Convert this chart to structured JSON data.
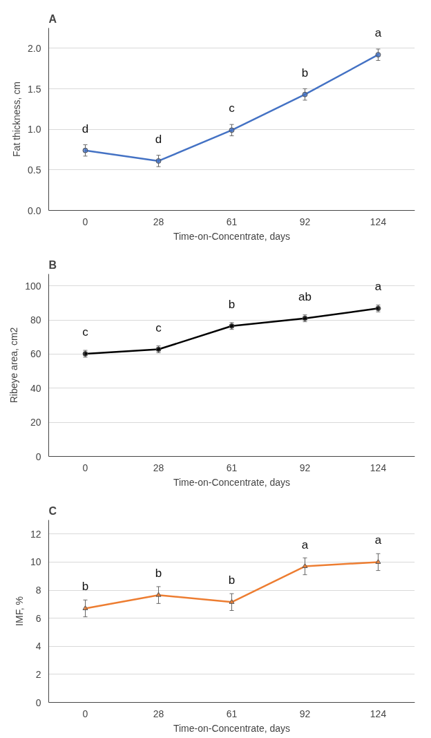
{
  "chart_data": [
    {
      "type": "line",
      "title": "A",
      "xlabel": "Time-on-Concentrate, days",
      "ylabel": "Fat thickness, cm",
      "categories": [
        "0",
        "28",
        "61",
        "92",
        "124"
      ],
      "values": [
        0.74,
        0.61,
        0.99,
        1.43,
        1.92
      ],
      "errors": [
        0.07,
        0.07,
        0.07,
        0.07,
        0.07
      ],
      "color": "#4472c4",
      "marker": "circle",
      "line_style": "solid",
      "grid": "y",
      "ylim": [
        0,
        2.25
      ],
      "yticks": [
        {
          "value": 0,
          "label": "0.0"
        },
        {
          "value": 0.5,
          "label": "0.5"
        },
        {
          "value": 1.0,
          "label": "1.0"
        },
        {
          "value": 1.5,
          "label": "1.5"
        },
        {
          "value": 2.0,
          "label": "2.0"
        }
      ],
      "annotations": [
        {
          "text": "d",
          "x": "0",
          "y": 0.74
        },
        {
          "text": "d",
          "x": "28",
          "y": 0.61
        },
        {
          "text": "c",
          "x": "61",
          "y": 0.99
        },
        {
          "text": "b",
          "x": "92",
          "y": 1.43
        },
        {
          "text": "a",
          "x": "124",
          "y": 1.92
        }
      ]
    },
    {
      "type": "line",
      "title": "B",
      "xlabel": "Time-on-Concentrate, days",
      "ylabel": "Ribeye area, cm2",
      "categories": [
        "0",
        "28",
        "61",
        "92",
        "124"
      ],
      "values": [
        60.2,
        62.8,
        76.5,
        81,
        86.8
      ],
      "errors": [
        2,
        2,
        2,
        2,
        2
      ],
      "color": "#000000",
      "marker": "circle",
      "line_style": "solid",
      "grid": "y",
      "ylim": [
        0,
        107
      ],
      "yticks": [
        0,
        20,
        40,
        60,
        80,
        100
      ],
      "annotations": [
        {
          "text": "c",
          "x": "0",
          "y": 60.2
        },
        {
          "text": "c",
          "x": "28",
          "y": 62.8
        },
        {
          "text": "b",
          "x": "61",
          "y": 76.5
        },
        {
          "text": "ab",
          "x": "92",
          "y": 81
        },
        {
          "text": "a",
          "x": "124",
          "y": 86.8
        }
      ]
    },
    {
      "type": "line",
      "title": "C",
      "xlabel": "Time-on-Concentrate, days",
      "ylabel": "IMF, %",
      "categories": [
        "0",
        "28",
        "61",
        "92",
        "124"
      ],
      "values": [
        6.7,
        7.65,
        7.15,
        9.7,
        10.0
      ],
      "errors": [
        0.6,
        0.6,
        0.6,
        0.6,
        0.6
      ],
      "color": "#ed7d31",
      "marker": "triangle",
      "line_style": "solid",
      "grid": "y",
      "ylim": [
        0,
        13
      ],
      "yticks": [
        0,
        2,
        4,
        6,
        8,
        10,
        12
      ],
      "annotations": [
        {
          "text": "b",
          "x": "0",
          "y": 6.7
        },
        {
          "text": "b",
          "x": "28",
          "y": 7.65
        },
        {
          "text": "b",
          "x": "61",
          "y": 7.15
        },
        {
          "text": "a",
          "x": "92",
          "y": 9.7
        },
        {
          "text": "a",
          "x": "124",
          "y": 10.0
        }
      ]
    }
  ]
}
